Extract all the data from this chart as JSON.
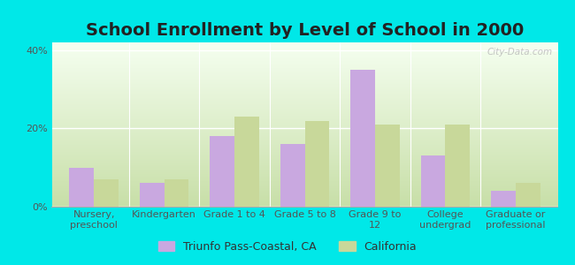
{
  "title": "School Enrollment by Level of School in 2000",
  "categories": [
    "Nursery,\npreschool",
    "Kindergarten",
    "Grade 1 to 4",
    "Grade 5 to 8",
    "Grade 9 to\n12",
    "College\nundergrad",
    "Graduate or\nprofessional"
  ],
  "triunfo_values": [
    10,
    6,
    18,
    16,
    35,
    13,
    4
  ],
  "california_values": [
    7,
    7,
    23,
    22,
    21,
    21,
    6
  ],
  "triunfo_color": "#c9a8e0",
  "california_color": "#c8d89a",
  "background_color": "#00e8e8",
  "ylabel_ticks": [
    "0%",
    "20%",
    "40%"
  ],
  "yticks": [
    0,
    20,
    40
  ],
  "ylim": [
    0,
    42
  ],
  "legend_triunfo": "Triunfo Pass-Coastal, CA",
  "legend_california": "California",
  "title_fontsize": 14,
  "tick_fontsize": 8,
  "legend_fontsize": 9,
  "bar_width": 0.35,
  "watermark": "City-Data.com"
}
